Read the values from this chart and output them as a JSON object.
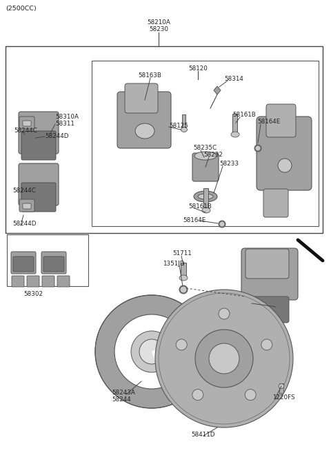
{
  "title_text": "(2500CC)",
  "bg_color": "#ffffff",
  "fig_width": 4.8,
  "fig_height": 6.57,
  "dpi": 100,
  "text_color": "#222222",
  "line_color": "#444444",
  "part_gray": "#a0a0a0",
  "part_light": "#c8c8c8",
  "part_dark": "#787878",
  "part_mid": "#b0b0b0",
  "fs": 6.3,
  "labels": {
    "title": "(2500CC)",
    "lbl_58210A": "58210A",
    "lbl_58230": "58230",
    "lbl_58120": "58120",
    "lbl_58163B": "58163B",
    "lbl_58314": "58314",
    "lbl_58310A": "58310A",
    "lbl_58311": "58311",
    "lbl_58244C_top": "58244C",
    "lbl_58244D_top": "58244D",
    "lbl_58125": "58125",
    "lbl_58161B_top": "58161B",
    "lbl_58164E_top": "58164E",
    "lbl_58235C": "58235C",
    "lbl_58232": "58232",
    "lbl_58233": "58233",
    "lbl_58161B_bot": "58161B",
    "lbl_58164E_bot": "58164E",
    "lbl_58244C_bot": "58244C",
    "lbl_58244D_bot": "58244D",
    "lbl_58302": "58302",
    "lbl_51711": "51711",
    "lbl_1351JD": "1351JD",
    "lbl_58243A": "58243A",
    "lbl_58244": "58244",
    "lbl_1220FS": "1220FS",
    "lbl_58411D": "58411D"
  }
}
